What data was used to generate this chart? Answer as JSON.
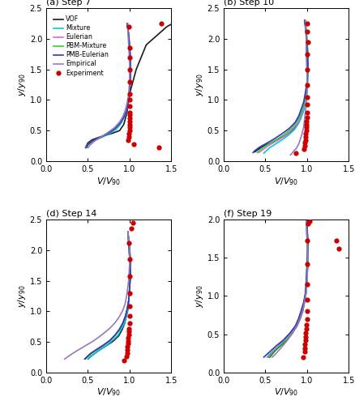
{
  "panels": [
    {
      "title": "(a) Step 7",
      "ylim": [
        0,
        2.5
      ],
      "xlim": [
        0.0,
        1.5
      ],
      "yticks": [
        0.0,
        0.5,
        1.0,
        1.5,
        2.0,
        2.5
      ],
      "xticks": [
        0.0,
        0.5,
        1.0,
        1.5
      ],
      "show_legend": true,
      "VOF": {
        "x": [
          0.47,
          0.48,
          0.5,
          0.55,
          0.65,
          0.78,
          0.88,
          0.93,
          0.97,
          1.0,
          1.08,
          1.2,
          1.45,
          1.52
        ],
        "y": [
          0.22,
          0.25,
          0.3,
          0.35,
          0.4,
          0.45,
          0.5,
          0.6,
          0.8,
          1.1,
          1.5,
          1.9,
          2.2,
          2.25
        ]
      },
      "Mixture": {
        "x": [
          0.48,
          0.5,
          0.55,
          0.65,
          0.76,
          0.84,
          0.89,
          0.93,
          0.96,
          0.98,
          0.99,
          1.0,
          1.01,
          1.01,
          1.0,
          0.99,
          0.98,
          0.97,
          0.97
        ],
        "y": [
          0.22,
          0.27,
          0.32,
          0.38,
          0.45,
          0.52,
          0.6,
          0.7,
          0.8,
          0.92,
          1.05,
          1.2,
          1.45,
          1.7,
          1.9,
          2.05,
          2.15,
          2.2,
          2.25
        ]
      },
      "Eulerian": {
        "x": [
          0.48,
          0.5,
          0.55,
          0.65,
          0.75,
          0.83,
          0.89,
          0.93,
          0.96,
          0.98,
          1.0,
          1.01,
          1.01,
          1.0,
          0.99,
          0.98,
          0.97
        ],
        "y": [
          0.22,
          0.27,
          0.33,
          0.39,
          0.46,
          0.54,
          0.63,
          0.72,
          0.82,
          0.93,
          1.08,
          1.35,
          1.65,
          1.88,
          2.05,
          2.17,
          2.25
        ]
      },
      "PBM_Mixture": {
        "x": [
          0.47,
          0.49,
          0.53,
          0.62,
          0.72,
          0.81,
          0.87,
          0.91,
          0.94,
          0.97,
          0.99,
          1.0,
          1.01,
          1.01,
          1.0,
          0.99,
          0.98,
          0.97
        ],
        "y": [
          0.22,
          0.26,
          0.31,
          0.37,
          0.44,
          0.52,
          0.6,
          0.69,
          0.79,
          0.9,
          1.02,
          1.17,
          1.4,
          1.65,
          1.88,
          2.05,
          2.17,
          2.25
        ]
      },
      "PMB_Eulerian": {
        "x": [
          0.48,
          0.5,
          0.55,
          0.65,
          0.75,
          0.83,
          0.89,
          0.93,
          0.96,
          0.98,
          1.0,
          1.01,
          1.01,
          1.0,
          0.99,
          0.98,
          0.97
        ],
        "y": [
          0.22,
          0.27,
          0.33,
          0.39,
          0.46,
          0.54,
          0.63,
          0.72,
          0.82,
          0.93,
          1.1,
          1.38,
          1.65,
          1.88,
          2.05,
          2.17,
          2.25
        ]
      },
      "Empirical": {
        "x": [
          0.5,
          0.53,
          0.58,
          0.66,
          0.74,
          0.82,
          0.88,
          0.92,
          0.95,
          0.97,
          0.99,
          1.0,
          1.0,
          0.99,
          0.98,
          0.98
        ],
        "y": [
          0.22,
          0.27,
          0.33,
          0.4,
          0.47,
          0.55,
          0.64,
          0.73,
          0.83,
          0.95,
          1.1,
          1.32,
          1.6,
          1.88,
          2.1,
          2.25
        ]
      },
      "Experiment": {
        "x": [
          1.05,
          1.35,
          0.98,
          0.99,
          0.99,
          1.0,
          1.0,
          1.0,
          1.0,
          1.0,
          1.0,
          1.0,
          1.0,
          1.0,
          1.0,
          1.0,
          1.0,
          1.0,
          1.0,
          0.99,
          1.38
        ],
        "y": [
          0.28,
          0.22,
          0.35,
          0.4,
          0.45,
          0.5,
          0.55,
          0.6,
          0.65,
          0.7,
          0.75,
          0.8,
          0.9,
          1.0,
          1.1,
          1.3,
          1.5,
          1.7,
          1.85,
          2.2,
          2.25
        ]
      }
    },
    {
      "title": "(b) Step 10",
      "ylim": [
        0,
        2.5
      ],
      "xlim": [
        0.0,
        1.5
      ],
      "yticks": [
        0.0,
        0.5,
        1.0,
        1.5,
        2.0,
        2.5
      ],
      "xticks": [
        0.0,
        0.5,
        1.0,
        1.5
      ],
      "show_legend": false,
      "VOF": {
        "x": [
          0.37,
          0.4,
          0.45,
          0.53,
          0.63,
          0.74,
          0.82,
          0.88,
          0.92,
          0.95,
          0.97,
          0.99,
          1.0,
          1.01,
          1.01,
          1.0,
          0.99,
          0.98,
          0.97
        ],
        "y": [
          0.15,
          0.18,
          0.23,
          0.28,
          0.34,
          0.42,
          0.5,
          0.59,
          0.69,
          0.8,
          0.92,
          1.05,
          1.2,
          1.45,
          1.7,
          1.92,
          2.1,
          2.2,
          2.3
        ]
      },
      "Mixture": {
        "x": [
          0.48,
          0.51,
          0.55,
          0.62,
          0.7,
          0.78,
          0.85,
          0.9,
          0.93,
          0.96,
          0.98,
          1.0,
          1.01,
          1.01,
          1.0,
          0.99,
          0.98,
          0.97
        ],
        "y": [
          0.13,
          0.17,
          0.22,
          0.28,
          0.35,
          0.43,
          0.52,
          0.62,
          0.72,
          0.83,
          0.95,
          1.1,
          1.32,
          1.6,
          1.85,
          2.05,
          2.18,
          2.3
        ]
      },
      "Eulerian": {
        "x": [
          0.42,
          0.46,
          0.51,
          0.58,
          0.67,
          0.76,
          0.83,
          0.89,
          0.92,
          0.95,
          0.97,
          0.99,
          1.0,
          1.01,
          1.0,
          0.99,
          0.98
        ],
        "y": [
          0.14,
          0.18,
          0.23,
          0.29,
          0.36,
          0.44,
          0.53,
          0.63,
          0.73,
          0.84,
          0.96,
          1.1,
          1.28,
          1.55,
          1.82,
          2.05,
          2.3
        ]
      },
      "PBM_Mixture": {
        "x": [
          0.4,
          0.43,
          0.48,
          0.55,
          0.64,
          0.73,
          0.81,
          0.87,
          0.91,
          0.94,
          0.97,
          0.99,
          1.0,
          1.01,
          1.01,
          1.0,
          0.99,
          0.98
        ],
        "y": [
          0.14,
          0.18,
          0.23,
          0.29,
          0.36,
          0.44,
          0.53,
          0.63,
          0.73,
          0.84,
          0.96,
          1.1,
          1.28,
          1.52,
          1.78,
          2.0,
          2.18,
          2.3
        ]
      },
      "PMB_Eulerian": {
        "x": [
          0.35,
          0.38,
          0.43,
          0.51,
          0.6,
          0.7,
          0.79,
          0.86,
          0.9,
          0.93,
          0.96,
          0.98,
          1.0,
          1.01,
          1.0,
          0.99,
          0.98,
          0.97
        ],
        "y": [
          0.14,
          0.18,
          0.23,
          0.29,
          0.36,
          0.45,
          0.54,
          0.64,
          0.74,
          0.85,
          0.97,
          1.12,
          1.3,
          1.58,
          1.85,
          2.08,
          2.22,
          2.3
        ]
      },
      "Empirical": {
        "x": [
          0.8,
          0.83,
          0.87,
          0.9,
          0.92,
          0.94,
          0.96,
          0.97,
          0.98,
          0.99,
          1.0,
          1.0,
          0.99,
          0.99,
          0.98
        ],
        "y": [
          0.1,
          0.15,
          0.21,
          0.28,
          0.36,
          0.45,
          0.56,
          0.68,
          0.81,
          0.95,
          1.15,
          1.42,
          1.72,
          2.0,
          2.3
        ]
      },
      "Experiment": {
        "x": [
          0.87,
          0.96,
          0.97,
          0.97,
          0.98,
          0.98,
          0.98,
          0.99,
          0.99,
          0.99,
          0.99,
          1.0,
          1.0,
          1.0,
          1.0,
          1.0,
          1.0,
          1.0,
          1.01,
          1.0,
          1.0
        ],
        "y": [
          0.13,
          0.2,
          0.25,
          0.3,
          0.35,
          0.4,
          0.45,
          0.5,
          0.55,
          0.6,
          0.65,
          0.72,
          0.8,
          0.92,
          1.05,
          1.25,
          1.5,
          1.75,
          1.95,
          2.12,
          2.25
        ]
      }
    },
    {
      "title": "(d) Step 14",
      "ylim": [
        0,
        2.5
      ],
      "xlim": [
        0.0,
        1.5
      ],
      "yticks": [
        0.0,
        0.5,
        1.0,
        1.5,
        2.0,
        2.5
      ],
      "xticks": [
        0.0,
        0.5,
        1.0,
        1.5
      ],
      "show_legend": false,
      "VOF": {
        "x": [
          0.5,
          0.53,
          0.57,
          0.63,
          0.71,
          0.8,
          0.87,
          0.91,
          0.94,
          0.96,
          0.98,
          0.99,
          1.0,
          1.01,
          1.01,
          1.0,
          0.99,
          0.98
        ],
        "y": [
          0.22,
          0.26,
          0.3,
          0.36,
          0.43,
          0.51,
          0.6,
          0.7,
          0.8,
          0.91,
          1.03,
          1.18,
          1.36,
          1.6,
          1.85,
          2.05,
          2.18,
          2.28
        ]
      },
      "Mixture": {
        "x": [
          0.5,
          0.53,
          0.57,
          0.63,
          0.71,
          0.79,
          0.86,
          0.9,
          0.94,
          0.96,
          0.98,
          0.99,
          1.0,
          1.01,
          1.0,
          0.99,
          0.98
        ],
        "y": [
          0.22,
          0.26,
          0.3,
          0.36,
          0.43,
          0.52,
          0.61,
          0.71,
          0.81,
          0.92,
          1.03,
          1.18,
          1.36,
          1.62,
          1.88,
          2.1,
          2.3
        ]
      },
      "Eulerian": {
        "x": [
          0.46,
          0.49,
          0.53,
          0.59,
          0.67,
          0.76,
          0.83,
          0.88,
          0.92,
          0.95,
          0.97,
          0.99,
          1.0,
          1.01,
          1.0,
          0.99,
          0.98
        ],
        "y": [
          0.22,
          0.26,
          0.31,
          0.37,
          0.44,
          0.52,
          0.62,
          0.71,
          0.81,
          0.92,
          1.03,
          1.18,
          1.36,
          1.62,
          1.88,
          2.1,
          2.3
        ]
      },
      "PBM_Mixture": {
        "x": [
          0.47,
          0.5,
          0.54,
          0.6,
          0.68,
          0.76,
          0.83,
          0.88,
          0.92,
          0.95,
          0.97,
          0.99,
          1.0,
          1.01,
          1.0,
          0.99,
          0.98
        ],
        "y": [
          0.22,
          0.26,
          0.31,
          0.37,
          0.44,
          0.52,
          0.61,
          0.71,
          0.81,
          0.92,
          1.03,
          1.18,
          1.36,
          1.62,
          1.88,
          2.1,
          2.3
        ]
      },
      "PMB_Eulerian": {
        "x": [
          0.46,
          0.49,
          0.53,
          0.6,
          0.68,
          0.76,
          0.83,
          0.88,
          0.92,
          0.95,
          0.97,
          0.99,
          1.0,
          1.01,
          1.0,
          0.99,
          0.98
        ],
        "y": [
          0.22,
          0.26,
          0.31,
          0.37,
          0.44,
          0.52,
          0.62,
          0.71,
          0.81,
          0.92,
          1.03,
          1.18,
          1.37,
          1.63,
          1.9,
          2.12,
          2.3
        ]
      },
      "Empirical": {
        "x": [
          0.22,
          0.28,
          0.36,
          0.46,
          0.57,
          0.67,
          0.76,
          0.83,
          0.88,
          0.92,
          0.95,
          0.97,
          0.99,
          1.0,
          1.0,
          0.99,
          0.98
        ],
        "y": [
          0.22,
          0.28,
          0.35,
          0.43,
          0.52,
          0.62,
          0.72,
          0.82,
          0.92,
          1.02,
          1.14,
          1.3,
          1.52,
          1.78,
          2.02,
          2.18,
          2.3
        ]
      },
      "Experiment": {
        "x": [
          0.93,
          0.96,
          0.97,
          0.97,
          0.97,
          0.98,
          0.98,
          0.98,
          0.99,
          0.99,
          0.99,
          1.0,
          1.0,
          1.0,
          1.0,
          1.0,
          1.0,
          0.99,
          1.02,
          1.04
        ],
        "y": [
          0.2,
          0.27,
          0.32,
          0.37,
          0.42,
          0.47,
          0.52,
          0.57,
          0.62,
          0.67,
          0.72,
          0.8,
          0.92,
          1.08,
          1.3,
          1.58,
          1.85,
          2.12,
          2.35,
          2.45
        ]
      }
    },
    {
      "title": "(f) Step 19",
      "ylim": [
        0,
        2.0
      ],
      "xlim": [
        0.0,
        1.5
      ],
      "yticks": [
        0.0,
        0.5,
        1.0,
        1.5,
        2.0
      ],
      "xticks": [
        0.0,
        0.5,
        1.0,
        1.5
      ],
      "show_legend": false,
      "VOF": {
        "x": [
          0.55,
          0.58,
          0.62,
          0.68,
          0.75,
          0.82,
          0.88,
          0.92,
          0.95,
          0.97,
          0.99,
          1.0,
          1.01,
          1.01,
          1.0,
          0.99
        ],
        "y": [
          0.2,
          0.24,
          0.29,
          0.35,
          0.42,
          0.51,
          0.61,
          0.71,
          0.81,
          0.92,
          1.05,
          1.22,
          1.45,
          1.7,
          1.9,
          2.0
        ]
      },
      "Mixture": {
        "x": [
          0.52,
          0.55,
          0.59,
          0.65,
          0.72,
          0.8,
          0.86,
          0.9,
          0.93,
          0.96,
          0.98,
          0.99,
          1.0,
          1.01,
          1.0,
          0.99
        ],
        "y": [
          0.2,
          0.24,
          0.28,
          0.34,
          0.41,
          0.5,
          0.6,
          0.7,
          0.8,
          0.91,
          1.03,
          1.18,
          1.38,
          1.65,
          1.9,
          2.0
        ]
      },
      "Eulerian": {
        "x": [
          0.53,
          0.56,
          0.6,
          0.66,
          0.73,
          0.81,
          0.87,
          0.91,
          0.94,
          0.97,
          0.99,
          1.0,
          1.01,
          1.0,
          0.99
        ],
        "y": [
          0.2,
          0.24,
          0.29,
          0.35,
          0.42,
          0.51,
          0.61,
          0.71,
          0.81,
          0.93,
          1.06,
          1.24,
          1.48,
          1.75,
          2.0
        ]
      },
      "PBM_Mixture": {
        "x": [
          0.54,
          0.57,
          0.61,
          0.67,
          0.74,
          0.81,
          0.87,
          0.91,
          0.94,
          0.97,
          0.99,
          1.0,
          1.01,
          1.0,
          0.99
        ],
        "y": [
          0.2,
          0.24,
          0.29,
          0.35,
          0.42,
          0.5,
          0.6,
          0.7,
          0.81,
          0.92,
          1.05,
          1.22,
          1.45,
          1.72,
          2.0
        ]
      },
      "PMB_Eulerian": {
        "x": [
          0.48,
          0.52,
          0.57,
          0.63,
          0.71,
          0.79,
          0.86,
          0.9,
          0.93,
          0.96,
          0.98,
          0.99,
          1.0,
          1.01,
          1.0,
          0.99
        ],
        "y": [
          0.2,
          0.24,
          0.29,
          0.35,
          0.42,
          0.51,
          0.61,
          0.71,
          0.81,
          0.92,
          1.04,
          1.2,
          1.42,
          1.68,
          1.95,
          2.0
        ]
      },
      "Empirical": {
        "x": [
          0.58,
          0.62,
          0.66,
          0.71,
          0.77,
          0.83,
          0.88,
          0.92,
          0.95,
          0.97,
          0.99,
          1.0,
          1.01,
          1.0,
          0.99
        ],
        "y": [
          0.2,
          0.24,
          0.29,
          0.35,
          0.43,
          0.52,
          0.62,
          0.72,
          0.82,
          0.93,
          1.06,
          1.24,
          1.5,
          1.78,
          2.0
        ]
      },
      "Experiment": {
        "x": [
          0.95,
          0.97,
          0.97,
          0.97,
          0.98,
          0.98,
          0.98,
          0.99,
          0.99,
          1.0,
          1.0,
          1.0,
          1.0,
          1.0,
          1.0,
          1.01,
          1.03,
          1.35,
          1.38
        ],
        "y": [
          0.2,
          0.27,
          0.32,
          0.37,
          0.42,
          0.47,
          0.52,
          0.57,
          0.62,
          0.7,
          0.8,
          0.95,
          1.15,
          1.42,
          1.72,
          1.95,
          1.98,
          1.72,
          1.62
        ]
      }
    }
  ],
  "line_styles": {
    "VOF": {
      "color": "#1a1a1a",
      "lw": 1.2,
      "ls": "-"
    },
    "Mixture": {
      "color": "#00cccc",
      "lw": 1.2,
      "ls": "-"
    },
    "Eulerian": {
      "color": "#dd66dd",
      "lw": 1.2,
      "ls": "-"
    },
    "PBM_Mixture": {
      "color": "#33cc33",
      "lw": 1.2,
      "ls": "-"
    },
    "PMB_Eulerian": {
      "color": "#3333bb",
      "lw": 1.2,
      "ls": "-"
    },
    "Empirical": {
      "color": "#9977bb",
      "lw": 1.2,
      "ls": "-"
    },
    "Experiment": {
      "color": "#cc0000",
      "marker": "o",
      "ms": 4.5,
      "lw": 0
    }
  },
  "legend_labels": [
    "VOF",
    "Mixture",
    "Eulerian",
    "PBM-Mixture",
    "PMB-Eulerian",
    "Empirical",
    "Experiment"
  ],
  "legend_keys": [
    "VOF",
    "Mixture",
    "Eulerian",
    "PBM_Mixture",
    "PMB_Eulerian",
    "Empirical",
    "Experiment"
  ],
  "xlabel": "$V/V_{90}$",
  "ylabel": "$y/y_{90}$"
}
